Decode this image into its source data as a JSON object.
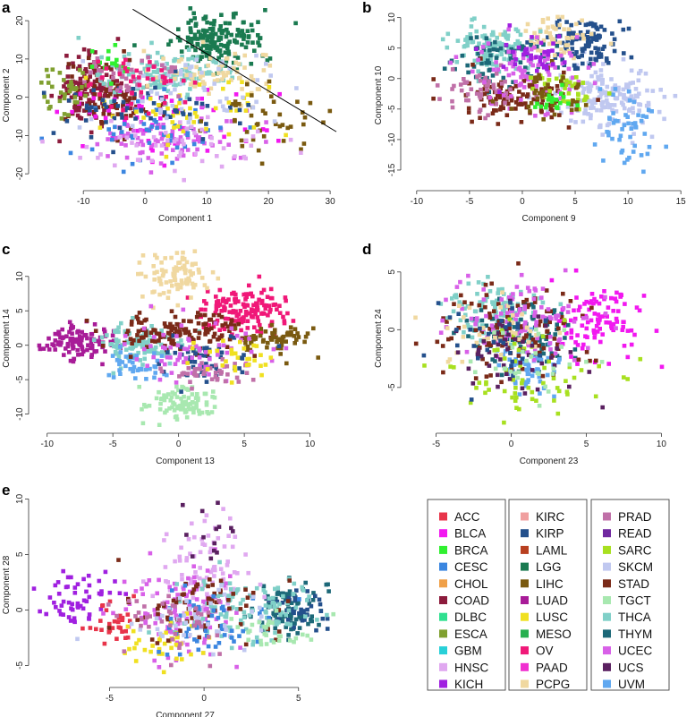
{
  "chart_data": [
    {
      "panel_label": "a",
      "type": "scatter",
      "xlabel": "Component 1",
      "ylabel": "Component 2",
      "xlim": [
        -18,
        31
      ],
      "ylim": [
        -23,
        24
      ],
      "xticks": [
        -10,
        0,
        10,
        20,
        30
      ],
      "yticks": [
        -20,
        -10,
        0,
        10,
        20
      ],
      "reference_line": [
        [
          -2,
          23
        ],
        [
          31,
          -9
        ]
      ],
      "clusters": [
        {
          "code": "LGG",
          "cx": 12,
          "cy": 15,
          "sx": 3.5,
          "sy": 3.5,
          "n": 170
        },
        {
          "code": "COAD",
          "cx": -9,
          "cy": 2,
          "sx": 2.5,
          "sy": 5,
          "n": 120
        },
        {
          "code": "STAD",
          "cx": -6,
          "cy": 0,
          "sx": 3,
          "sy": 5,
          "n": 90
        },
        {
          "code": "THCA",
          "cx": 4,
          "cy": 6,
          "sx": 5,
          "sy": 3,
          "n": 150
        },
        {
          "code": "PCPG",
          "cx": 12,
          "cy": 6,
          "sx": 5,
          "sy": 3,
          "n": 70
        },
        {
          "code": "BLCA",
          "cx": 2,
          "cy": -6,
          "sx": 9,
          "sy": 5,
          "n": 60
        },
        {
          "code": "UCEC",
          "cx": 4,
          "cy": -10,
          "sx": 7,
          "sy": 4,
          "n": 90
        },
        {
          "code": "CESC",
          "cx": 2,
          "cy": -8,
          "sx": 7,
          "sy": 4,
          "n": 50
        },
        {
          "code": "LIHC",
          "cx": 20,
          "cy": -6,
          "sx": 5,
          "sy": 5,
          "n": 45
        },
        {
          "code": "LUSC",
          "cx": 6,
          "cy": -4,
          "sx": 7,
          "sy": 4,
          "n": 50
        },
        {
          "code": "KIRP",
          "cx": 0,
          "cy": -3,
          "sx": 7,
          "sy": 4,
          "n": 60
        },
        {
          "code": "SKCM",
          "cx": 8,
          "cy": 2,
          "sx": 7,
          "sy": 5,
          "n": 60
        },
        {
          "code": "PRAD",
          "cx": -2,
          "cy": 5,
          "sx": 4,
          "sy": 3,
          "n": 40
        },
        {
          "code": "ESCA",
          "cx": -13,
          "cy": 2,
          "sx": 2,
          "sy": 4,
          "n": 35
        },
        {
          "code": "BRCA",
          "cx": -6,
          "cy": 8,
          "sx": 2,
          "sy": 3,
          "n": 15
        },
        {
          "code": "HNSC",
          "cx": 6,
          "cy": -12,
          "sx": 8,
          "sy": 4,
          "n": 50
        },
        {
          "code": "OV",
          "cx": 0,
          "cy": 4,
          "sx": 5,
          "sy": 4,
          "n": 40
        }
      ]
    },
    {
      "panel_label": "b",
      "type": "scatter",
      "xlabel": "Component 9",
      "ylabel": "Component 10",
      "xlim": [
        -11,
        16
      ],
      "ylim": [
        -17.5,
        12
      ],
      "xticks": [
        -10,
        -5,
        0,
        5,
        10,
        15
      ],
      "yticks": [
        -15,
        -10,
        -5,
        0,
        5,
        10
      ],
      "clusters": [
        {
          "code": "SKCM",
          "cx": 8,
          "cy": -3,
          "sx": 2.7,
          "sy": 2.5,
          "n": 170
        },
        {
          "code": "UVM",
          "cx": 10,
          "cy": -8,
          "sx": 1.5,
          "sy": 3,
          "n": 50
        },
        {
          "code": "KIRP",
          "cx": 6,
          "cy": 6,
          "sx": 2,
          "sy": 2,
          "n": 110
        },
        {
          "code": "PCPG",
          "cx": 3,
          "cy": 7,
          "sx": 2,
          "sy": 2,
          "n": 60
        },
        {
          "code": "THCA",
          "cx": -3,
          "cy": 5,
          "sx": 2,
          "sy": 2,
          "n": 110
        },
        {
          "code": "THYM",
          "cx": -2,
          "cy": 3,
          "sx": 2.5,
          "sy": 2,
          "n": 70
        },
        {
          "code": "STAD",
          "cx": -1,
          "cy": -3,
          "sx": 2.5,
          "sy": 2,
          "n": 110
        },
        {
          "code": "PRAD",
          "cx": -4,
          "cy": -2,
          "sx": 2,
          "sy": 2,
          "n": 50
        },
        {
          "code": "UCEC",
          "cx": 1,
          "cy": 1,
          "sx": 3,
          "sy": 3,
          "n": 90
        },
        {
          "code": "SARC",
          "cx": 4,
          "cy": -2,
          "sx": 1.5,
          "sy": 1.5,
          "n": 35
        },
        {
          "code": "LIHC",
          "cx": 2,
          "cy": -3,
          "sx": 2,
          "sy": 2,
          "n": 40
        },
        {
          "code": "KICH",
          "cx": 1,
          "cy": 4,
          "sx": 2,
          "sy": 2,
          "n": 35
        },
        {
          "code": "BRCA",
          "cx": 3,
          "cy": -4,
          "sx": 1,
          "sy": 1,
          "n": 20
        }
      ]
    },
    {
      "panel_label": "c",
      "type": "scatter",
      "xlabel": "Component 13",
      "ylabel": "Component 14",
      "xlim": [
        -11,
        12
      ],
      "ylim": [
        -12,
        14
      ],
      "xticks": [
        -10,
        -5,
        0,
        5,
        10
      ],
      "yticks": [
        -10,
        -5,
        0,
        5,
        10
      ],
      "clusters": [
        {
          "code": "OV",
          "cx": 5,
          "cy": 5,
          "sx": 1.8,
          "sy": 1.6,
          "n": 150
        },
        {
          "code": "PCPG",
          "cx": 0,
          "cy": 10,
          "sx": 1.2,
          "sy": 1.8,
          "n": 90
        },
        {
          "code": "TGCT",
          "cx": 0.5,
          "cy": -8.5,
          "sx": 1.3,
          "sy": 1.2,
          "n": 90
        },
        {
          "code": "LUAD",
          "cx": -7.5,
          "cy": 0.5,
          "sx": 1.3,
          "sy": 1.3,
          "n": 110
        },
        {
          "code": "THCA",
          "cx": -3,
          "cy": 0,
          "sx": 1.5,
          "sy": 1.5,
          "n": 110
        },
        {
          "code": "UVM",
          "cx": -3.5,
          "cy": -3,
          "sx": 1.2,
          "sy": 1.2,
          "n": 40
        },
        {
          "code": "STAD",
          "cx": 0,
          "cy": 2,
          "sx": 3,
          "sy": 1.5,
          "n": 130
        },
        {
          "code": "LIHC",
          "cx": 7,
          "cy": 1,
          "sx": 1.5,
          "sy": 1.2,
          "n": 60
        },
        {
          "code": "KIRP",
          "cx": 2,
          "cy": -2,
          "sx": 2,
          "sy": 1.5,
          "n": 50
        },
        {
          "code": "UCEC",
          "cx": 1,
          "cy": -1,
          "sx": 3,
          "sy": 2,
          "n": 70
        },
        {
          "code": "PRAD",
          "cx": 2,
          "cy": -4,
          "sx": 2,
          "sy": 1,
          "n": 40
        },
        {
          "code": "LUSC",
          "cx": 4,
          "cy": -2,
          "sx": 2,
          "sy": 1.2,
          "n": 30
        }
      ]
    },
    {
      "panel_label": "d",
      "type": "scatter",
      "xlabel": "Component 23",
      "ylabel": "Component 24",
      "xlim": [
        -7,
        12
      ],
      "ylim": [
        -8.5,
        7
      ],
      "xticks": [
        -5,
        0,
        5,
        10
      ],
      "yticks": [
        -5,
        0,
        5
      ],
      "clusters": [
        {
          "code": "BLCA",
          "cx": 6,
          "cy": 1,
          "sx": 1.5,
          "sy": 1.5,
          "n": 100
        },
        {
          "code": "THCA",
          "cx": -1,
          "cy": 1.5,
          "sx": 1.5,
          "sy": 1.2,
          "n": 110
        },
        {
          "code": "THYM",
          "cx": 0.5,
          "cy": -0.5,
          "sx": 2,
          "sy": 1.5,
          "n": 90
        },
        {
          "code": "UVM",
          "cx": 1,
          "cy": -3,
          "sx": 1.2,
          "sy": 1.2,
          "n": 60
        },
        {
          "code": "STAD",
          "cx": 0,
          "cy": 0,
          "sx": 2.5,
          "sy": 2,
          "n": 110
        },
        {
          "code": "UCEC",
          "cx": 1,
          "cy": 1,
          "sx": 2.5,
          "sy": 2,
          "n": 100
        },
        {
          "code": "SARC",
          "cx": 1,
          "cy": -4,
          "sx": 2.5,
          "sy": 2,
          "n": 60
        },
        {
          "code": "PCPG",
          "cx": -2,
          "cy": 0,
          "sx": 2,
          "sy": 2,
          "n": 40
        },
        {
          "code": "UCS",
          "cx": 0,
          "cy": -2,
          "sx": 2,
          "sy": 2,
          "n": 50
        },
        {
          "code": "KIRP",
          "cx": -1,
          "cy": -1,
          "sx": 2,
          "sy": 2,
          "n": 30
        },
        {
          "code": "TGCT",
          "cx": 2,
          "cy": -3,
          "sx": 2,
          "sy": 1.5,
          "n": 30
        }
      ]
    },
    {
      "panel_label": "e",
      "type": "scatter",
      "xlabel": "Component 27",
      "ylabel": "Component 28",
      "xlim": [
        -9,
        7
      ],
      "ylim": [
        -6.5,
        11
      ],
      "xticks": [
        -5,
        0,
        5
      ],
      "yticks": [
        -5,
        0,
        5,
        10
      ],
      "clusters": [
        {
          "code": "KICH",
          "cx": -7,
          "cy": 1,
          "sx": 1,
          "sy": 1,
          "n": 60
        },
        {
          "code": "ACC",
          "cx": -5,
          "cy": -1,
          "sx": 0.8,
          "sy": 1,
          "n": 30
        },
        {
          "code": "THYM",
          "cx": 4.5,
          "cy": 0,
          "sx": 1,
          "sy": 1.3,
          "n": 90
        },
        {
          "code": "KIRP",
          "cx": 5,
          "cy": 0.5,
          "sx": 0.8,
          "sy": 1.2,
          "n": 40
        },
        {
          "code": "HNSC",
          "cx": 0,
          "cy": 3,
          "sx": 1.5,
          "sy": 2.5,
          "n": 100
        },
        {
          "code": "UCEC",
          "cx": -1,
          "cy": 0,
          "sx": 1.5,
          "sy": 2,
          "n": 110
        },
        {
          "code": "THCA",
          "cx": 2,
          "cy": 0,
          "sx": 2,
          "sy": 1.5,
          "n": 110
        },
        {
          "code": "LUSC",
          "cx": -2,
          "cy": -3,
          "sx": 1,
          "sy": 1,
          "n": 40
        },
        {
          "code": "STAD",
          "cx": 0,
          "cy": 0,
          "sx": 2,
          "sy": 1.5,
          "n": 70
        },
        {
          "code": "CESC",
          "cx": 0,
          "cy": -1,
          "sx": 2,
          "sy": 1.5,
          "n": 50
        },
        {
          "code": "SKCM",
          "cx": 0,
          "cy": -1,
          "sx": 2,
          "sy": 1.5,
          "n": 40
        },
        {
          "code": "TGCT",
          "cx": 4,
          "cy": -2,
          "sx": 1,
          "sy": 1,
          "n": 30
        },
        {
          "code": "UCS",
          "cx": 0,
          "cy": 7,
          "sx": 1,
          "sy": 2,
          "n": 15
        },
        {
          "code": "PRAD",
          "cx": -2,
          "cy": -1,
          "sx": 1.5,
          "sy": 1.5,
          "n": 40
        }
      ]
    }
  ],
  "legend": {
    "columns": [
      [
        {
          "label": "ACC",
          "color": "#e8344a"
        },
        {
          "label": "BLCA",
          "color": "#f218f0"
        },
        {
          "label": "BRCA",
          "color": "#30f030"
        },
        {
          "label": "CESC",
          "color": "#3b86e0"
        },
        {
          "label": "CHOL",
          "color": "#f0a048"
        },
        {
          "label": "COAD",
          "color": "#8c1b3c"
        },
        {
          "label": "DLBC",
          "color": "#30e090"
        },
        {
          "label": "ESCA",
          "color": "#80a030"
        },
        {
          "label": "GBM",
          "color": "#28d0d8"
        },
        {
          "label": "HNSC",
          "color": "#e0a8f0"
        },
        {
          "label": "KICH",
          "color": "#a020e0"
        }
      ],
      [
        {
          "label": "KIRC",
          "color": "#f0a0a0"
        },
        {
          "label": "KIRP",
          "color": "#24508c"
        },
        {
          "label": "LAML",
          "color": "#b84020"
        },
        {
          "label": "LGG",
          "color": "#1a7a50"
        },
        {
          "label": "LIHC",
          "color": "#7a5a10"
        },
        {
          "label": "LUAD",
          "color": "#a81c98"
        },
        {
          "label": "LUSC",
          "color": "#f0e020"
        },
        {
          "label": "MESO",
          "color": "#28b050"
        },
        {
          "label": "OV",
          "color": "#f01878"
        },
        {
          "label": "PAAD",
          "color": "#f030d0"
        },
        {
          "label": "PCPG",
          "color": "#f0d8a0"
        }
      ],
      [
        {
          "label": "PRAD",
          "color": "#c070a8"
        },
        {
          "label": "READ",
          "color": "#7028a0"
        },
        {
          "label": "SARC",
          "color": "#a8e020"
        },
        {
          "label": "SKCM",
          "color": "#c0c8f0"
        },
        {
          "label": "STAD",
          "color": "#7a2a18"
        },
        {
          "label": "TGCT",
          "color": "#a8e8b0"
        },
        {
          "label": "THCA",
          "color": "#80d0c8"
        },
        {
          "label": "THYM",
          "color": "#1c6878"
        },
        {
          "label": "UCEC",
          "color": "#d860e8"
        },
        {
          "label": "UCS",
          "color": "#5a2060"
        },
        {
          "label": "UVM",
          "color": "#60a8f0"
        }
      ]
    ]
  }
}
